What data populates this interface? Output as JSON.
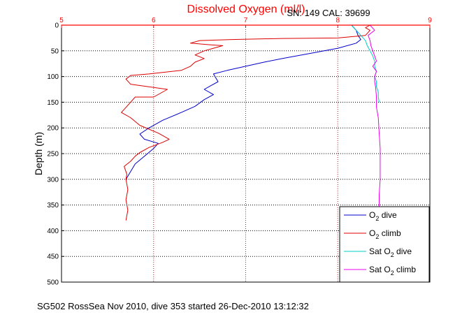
{
  "chart_data": {
    "type": "line",
    "title": "Dissolved Oxygen (ml/l)",
    "subtitle": "SN: 149  CAL: 39699",
    "ylabel": "Depth (m)",
    "xlabel": "",
    "caption": "SG502 RossSea Nov 2010, dive 353 started 26-Dec-2010 13:12:32",
    "xlim": [
      5,
      9
    ],
    "ylim": [
      500,
      0
    ],
    "xticks": [
      "5",
      "6",
      "7",
      "8",
      "9"
    ],
    "yticks": [
      "0",
      "50",
      "100",
      "150",
      "200",
      "250",
      "300",
      "350",
      "400",
      "450",
      "500"
    ],
    "grid": true,
    "legend_position": "bottom-right",
    "colors": {
      "title": "#ff0000",
      "axis_top": "#ff0000",
      "dive": "#0000cc",
      "climb": "#dd0000",
      "sat_dive": "#00cccc",
      "sat_climb": "#ee00ee"
    },
    "series": [
      {
        "name": "O2 dive",
        "legend_main": "O",
        "legend_sub": "2",
        "legend_rest": " dive",
        "color": "#0000cc",
        "dash": "",
        "x": [
          8.15,
          8.2,
          8.22,
          8.25,
          8.2,
          8.0,
          7.7,
          7.4,
          7.2,
          7.0,
          6.8,
          6.65,
          6.7,
          6.62,
          6.55,
          6.65,
          6.55,
          6.45,
          6.3,
          6.1,
          5.95,
          5.85,
          5.9,
          6.05,
          6.0,
          5.9,
          5.8,
          5.75,
          5.7
        ],
        "y": [
          0,
          10,
          20,
          28,
          35,
          45,
          55,
          65,
          72,
          80,
          88,
          95,
          110,
          118,
          125,
          135,
          145,
          158,
          170,
          185,
          200,
          212,
          222,
          230,
          240,
          255,
          270,
          285,
          300
        ]
      },
      {
        "name": "O2 climb",
        "legend_main": "O",
        "legend_sub": "2",
        "legend_rest": " climb",
        "color": "#dd0000",
        "dash": "",
        "x": [
          5.7,
          5.72,
          5.7,
          5.72,
          5.7,
          5.71,
          5.68,
          5.75,
          5.8,
          5.85,
          5.95,
          6.1,
          6.17,
          6.05,
          5.85,
          5.75,
          5.65,
          5.7,
          5.75,
          5.8,
          6.0,
          6.15,
          5.75,
          5.7,
          5.75,
          5.95,
          6.3,
          6.4,
          6.45,
          6.55,
          6.45,
          6.55,
          6.65,
          6.75,
          6.6,
          6.4,
          6.5,
          6.85,
          7.4,
          8.0,
          8.3,
          8.35,
          8.3,
          8.35
        ],
        "y": [
          380,
          360,
          340,
          320,
          300,
          290,
          275,
          265,
          255,
          248,
          238,
          228,
          222,
          210,
          195,
          180,
          170,
          160,
          150,
          140,
          140,
          125,
          115,
          105,
          98,
          95,
          88,
          80,
          72,
          65,
          58,
          50,
          45,
          40,
          38,
          35,
          30,
          28,
          26,
          25,
          20,
          10,
          5,
          0
        ]
      },
      {
        "name": "Sat O2 dive",
        "legend_main": "Sat O",
        "legend_sub": "2",
        "legend_rest": " dive",
        "color": "#00cccc",
        "dash": "",
        "x": [
          8.15,
          8.2,
          8.25,
          8.3,
          8.32,
          8.35,
          8.38,
          8.4,
          8.4,
          8.42,
          8.4,
          8.42,
          8.42,
          8.44,
          8.44,
          8.45
        ],
        "y": [
          0,
          10,
          20,
          30,
          40,
          50,
          60,
          70,
          80,
          90,
          100,
          110,
          120,
          130,
          140,
          150
        ]
      },
      {
        "name": "Sat O2 climb",
        "legend_main": "Sat O",
        "legend_sub": "2",
        "legend_rest": " climb",
        "color": "#ee00ee",
        "dash": "",
        "x": [
          8.45,
          8.45,
          8.46,
          8.46,
          8.46,
          8.45,
          8.44,
          8.42,
          8.42,
          8.41,
          8.4,
          8.4,
          8.42,
          8.38,
          8.4,
          8.42,
          8.4,
          8.38,
          8.36,
          8.35,
          8.33,
          8.4,
          8.35
        ],
        "y": [
          360,
          330,
          300,
          270,
          240,
          210,
          180,
          160,
          140,
          120,
          110,
          100,
          90,
          80,
          75,
          70,
          60,
          50,
          40,
          30,
          20,
          10,
          0
        ]
      }
    ]
  }
}
